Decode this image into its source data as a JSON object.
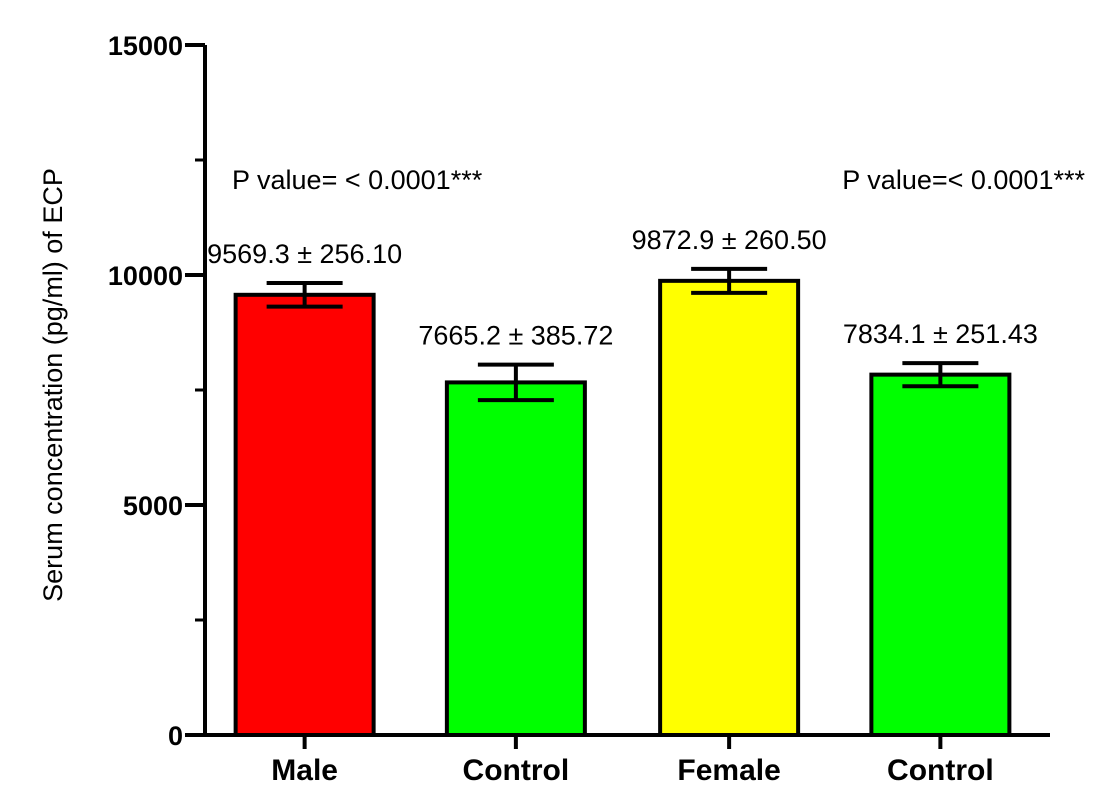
{
  "chart_data": {
    "type": "bar",
    "categories": [
      "Male",
      "Control",
      "Female",
      "Control"
    ],
    "values": [
      9569.3,
      7665.2,
      9872.9,
      7834.1
    ],
    "errors": [
      256.1,
      385.72,
      260.5,
      251.43
    ],
    "colors": [
      "#ff0000",
      "#00ff00",
      "#ffff00",
      "#00ff00"
    ],
    "data_labels": [
      "9569.3 ± 256.10",
      "7665.2 ± 385.72",
      "9872.9 ± 260.50",
      "7834.1 ± 251.43"
    ],
    "p_values": [
      "P value=  < 0.0001***",
      "P value=< 0.0001***"
    ],
    "ylabel": "Serum concentration  (pg/ml) of ECP",
    "xlabel": "",
    "ylim": [
      0,
      15000
    ],
    "yticks": [
      0,
      5000,
      10000,
      15000
    ],
    "grid": false
  }
}
